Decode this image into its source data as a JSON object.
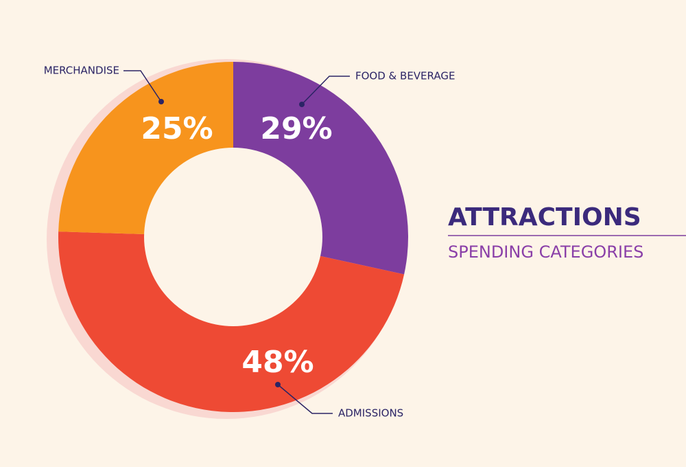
{
  "chart_data": {
    "type": "donut",
    "title": "ATTRACTIONS",
    "subtitle": "SPENDING CATEGORIES",
    "categories": [
      "FOOD & BEVERAGE",
      "ADMISSIONS",
      "MERCHANDISE"
    ],
    "values": [
      29,
      48,
      25
    ],
    "value_labels": [
      "29%",
      "48%",
      "25%"
    ],
    "colors": [
      "#7d3d9e",
      "#ee4a34",
      "#f7941d"
    ]
  }
}
